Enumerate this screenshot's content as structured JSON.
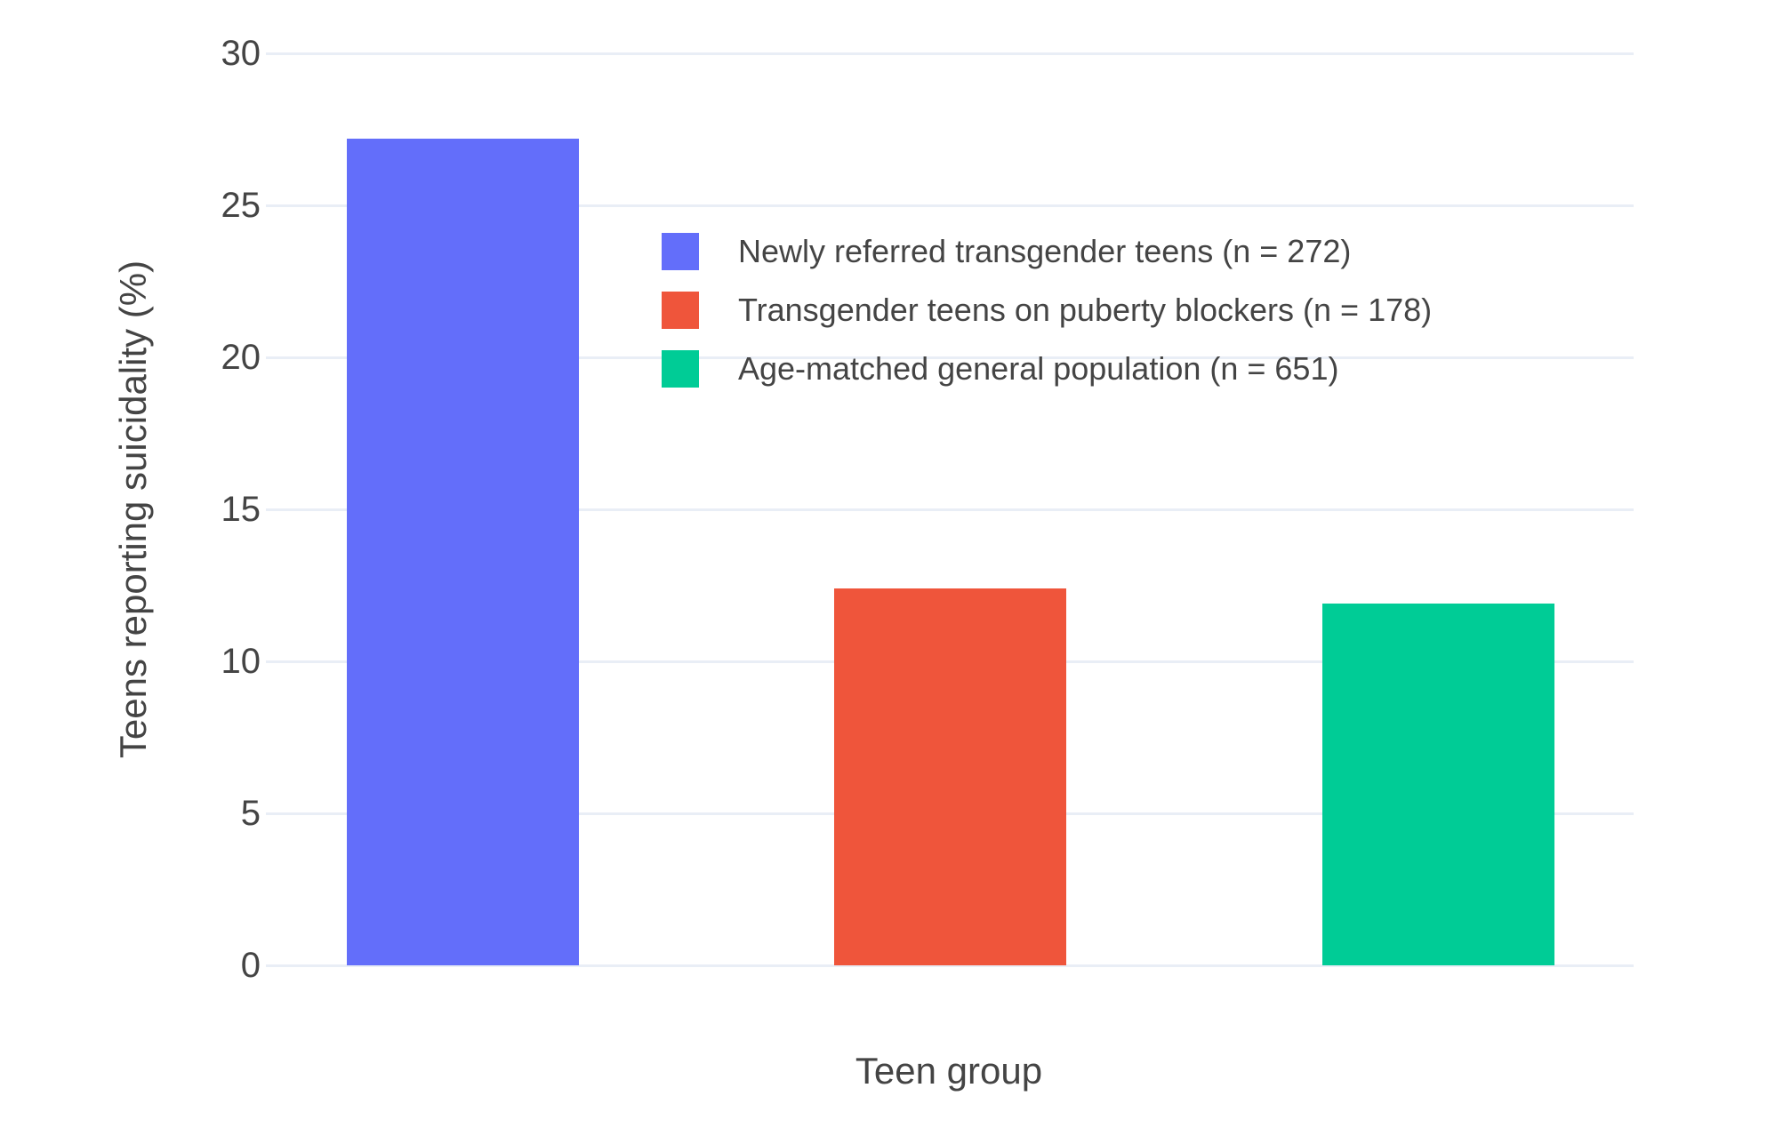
{
  "chart_data": {
    "type": "bar",
    "title": "",
    "xlabel": "Teen group",
    "ylabel": "Teens reporting suicidality (%)",
    "categories": [
      "Newly referred transgender teens",
      "Transgender teens on puberty blockers",
      "Age-matched general population"
    ],
    "values": [
      27.2,
      12.4,
      11.9
    ],
    "series": [
      {
        "name": "Newly referred transgender teens (n = 272)",
        "n": 272,
        "value": 27.2,
        "color": "#636EFA"
      },
      {
        "name": "Transgender teens on puberty blockers (n = 178)",
        "n": 178,
        "value": 12.4,
        "color": "#EF553B"
      },
      {
        "name": "Age-matched general population (n = 651)",
        "n": 651,
        "value": 11.9,
        "color": "#00CC96"
      }
    ],
    "ylim": [
      0,
      30
    ],
    "yticks": [
      0,
      5,
      10,
      15,
      20,
      25,
      30
    ],
    "grid": true,
    "legend_position": "inside-top-center",
    "colors": {
      "grid": "#E9EEF6",
      "text": "#444444",
      "background": "#FFFFFF"
    }
  }
}
